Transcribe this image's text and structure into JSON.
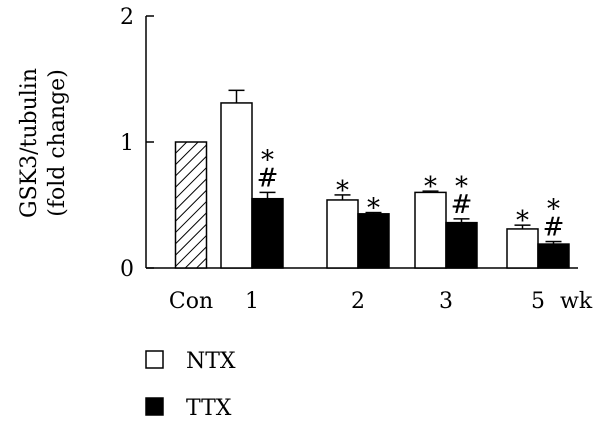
{
  "chart_data": {
    "type": "bar",
    "ylabel_line1": "GSK3/tubulin",
    "ylabel_line2": "(fold change)",
    "ylim": [
      0,
      2
    ],
    "yticks": [
      "0",
      "1",
      "2"
    ],
    "xunit": "wk",
    "categories": [
      "Con",
      "1",
      "2",
      "3",
      "5"
    ],
    "control": {
      "name": "Con",
      "value": 1.0
    },
    "series": [
      {
        "name": "NTX",
        "color": "#ffffff",
        "values": [
          null,
          1.31,
          0.54,
          0.6,
          0.31
        ],
        "errors": [
          null,
          0.1,
          0.04,
          0.01,
          0.03
        ],
        "marks": [
          null,
          "",
          "*",
          "*",
          "*"
        ]
      },
      {
        "name": "TTX",
        "color": "#000000",
        "values": [
          null,
          0.55,
          0.43,
          0.36,
          0.19
        ],
        "errors": [
          null,
          0.05,
          0.01,
          0.03,
          0.02
        ],
        "marks": [
          null,
          "*\n#",
          "*",
          "*\n#",
          "*\n#"
        ]
      }
    ],
    "legend": {
      "position": "bottom-left",
      "items": [
        "NTX",
        "TTX"
      ]
    }
  }
}
